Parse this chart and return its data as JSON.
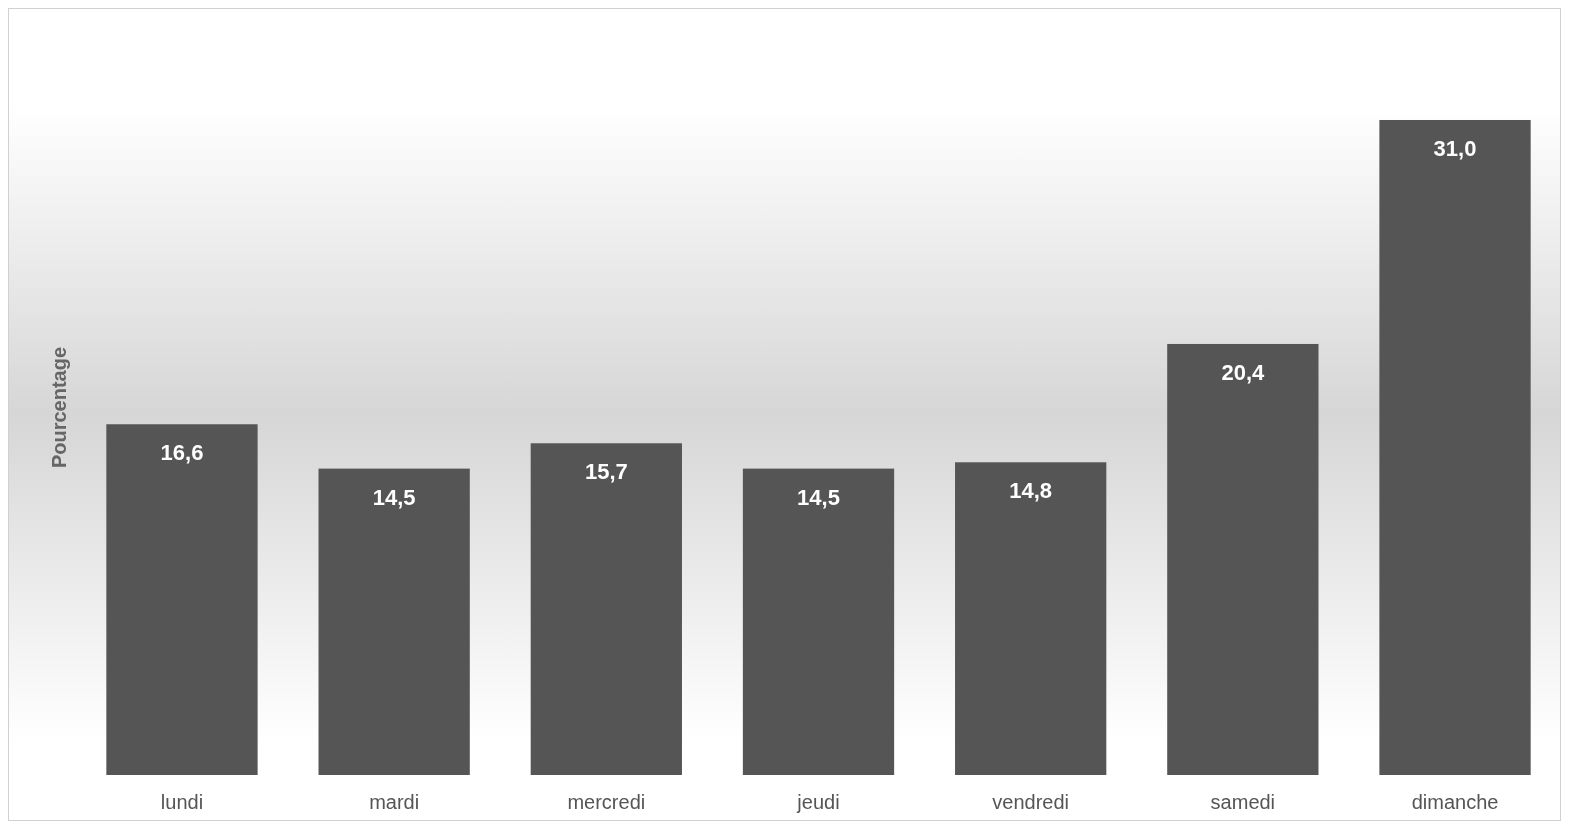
{
  "chart_data": {
    "type": "bar",
    "ylabel": "Pourcentage",
    "categories": [
      "lundi",
      "mardi",
      "mercredi",
      "jeudi",
      "vendredi",
      "samedi",
      "dimanche"
    ],
    "values": [
      16.6,
      14.5,
      15.7,
      14.5,
      14.8,
      20.4,
      31.0
    ],
    "value_labels": [
      "16,6",
      "14,5",
      "15,7",
      "14,5",
      "14,8",
      "20,4",
      "31,0"
    ],
    "color": "#555555"
  }
}
